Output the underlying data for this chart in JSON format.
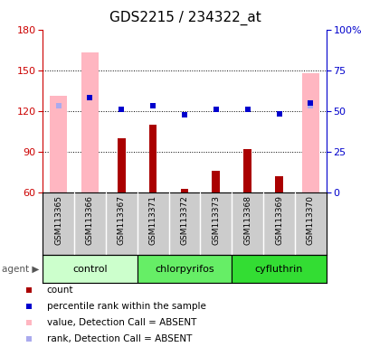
{
  "title": "GDS2215 / 234322_at",
  "samples": [
    "GSM113365",
    "GSM113366",
    "GSM113367",
    "GSM113371",
    "GSM113372",
    "GSM113373",
    "GSM113368",
    "GSM113369",
    "GSM113370"
  ],
  "red_bars": [
    null,
    null,
    100,
    110,
    63,
    76,
    92,
    72,
    null
  ],
  "pink_bars": [
    131,
    163,
    null,
    null,
    null,
    null,
    null,
    null,
    148
  ],
  "blue_dots_left": [
    null,
    130,
    121,
    124,
    117,
    121,
    121,
    118,
    126
  ],
  "lavender_dots_left": [
    124,
    130,
    null,
    null,
    null,
    null,
    null,
    null,
    124
  ],
  "ylim_left": [
    60,
    180
  ],
  "ylim_right": [
    0,
    100
  ],
  "left_ticks": [
    60,
    90,
    120,
    150,
    180
  ],
  "right_ticks": [
    0,
    25,
    50,
    75,
    100
  ],
  "right_tick_labels": [
    "0",
    "25",
    "50",
    "75",
    "100%"
  ],
  "left_color": "#CC0000",
  "right_color": "#0000CC",
  "title_fontsize": 11,
  "pink_color": "#FFB6C1",
  "red_color": "#AA0000",
  "blue_color": "#0000CD",
  "lavender_color": "#AAAAEE",
  "group_names": [
    "control",
    "chlorpyrifos",
    "cyfluthrin"
  ],
  "group_colors": [
    "#CCFFCC",
    "#66EE66",
    "#33DD33"
  ],
  "group_ranges": [
    [
      0,
      3
    ],
    [
      3,
      6
    ],
    [
      6,
      9
    ]
  ],
  "pink_bar_width": 0.55,
  "red_bar_width": 0.25,
  "dot_size": 5
}
